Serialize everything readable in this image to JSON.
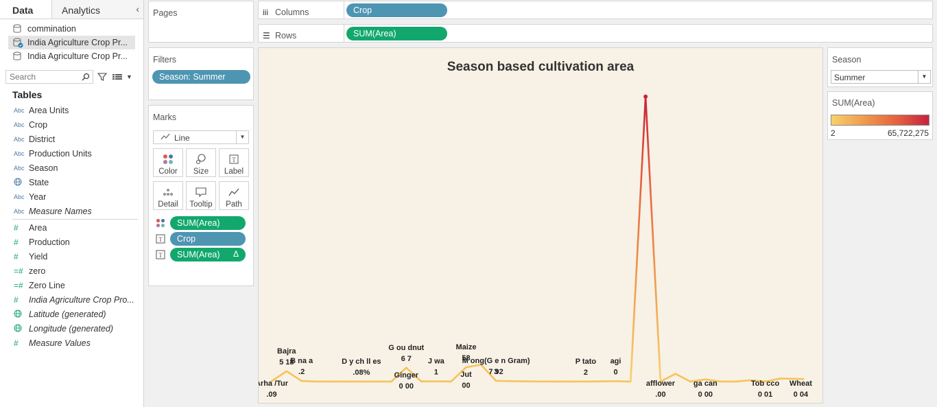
{
  "left_pane": {
    "tabs": [
      "Data",
      "Analytics"
    ],
    "collapse_icon": "chevron-left-icon",
    "data_sources": [
      {
        "label": "commination",
        "selected": false
      },
      {
        "label": "India Agriculture Crop Pr...",
        "selected": true
      },
      {
        "label": "India Agriculture Crop Pr...",
        "selected": false
      }
    ],
    "search_placeholder": "Search",
    "tables_heading": "Tables",
    "dimensions": [
      {
        "type": "Abc",
        "label": "Area Units",
        "italic": false
      },
      {
        "type": "Abc",
        "label": "Crop",
        "italic": false
      },
      {
        "type": "Abc",
        "label": "District",
        "italic": false
      },
      {
        "type": "Abc",
        "label": "Production Units",
        "italic": false
      },
      {
        "type": "Abc",
        "label": "Season",
        "italic": false
      },
      {
        "type": "geo",
        "label": "State",
        "italic": false
      },
      {
        "type": "Abc",
        "label": "Year",
        "italic": false
      },
      {
        "type": "Abc",
        "label": "Measure Names",
        "italic": true
      }
    ],
    "measures": [
      {
        "type": "#",
        "label": "Area",
        "italic": false
      },
      {
        "type": "#",
        "label": "Production",
        "italic": false
      },
      {
        "type": "#",
        "label": "Yield",
        "italic": false
      },
      {
        "type": "=#",
        "label": "zero",
        "italic": false
      },
      {
        "type": "=#",
        "label": "Zero Line",
        "italic": false
      },
      {
        "type": "#",
        "label": "India Agriculture Crop Pro...",
        "italic": true
      },
      {
        "type": "geo",
        "label": "Latitude (generated)",
        "italic": true
      },
      {
        "type": "geo",
        "label": "Longitude (generated)",
        "italic": true
      },
      {
        "type": "#",
        "label": "Measure Values",
        "italic": true
      }
    ]
  },
  "pages_panel": {
    "title": "Pages"
  },
  "filters_panel": {
    "title": "Filters",
    "pill": "Season: Summer"
  },
  "marks_panel": {
    "title": "Marks",
    "mark_type": "Line",
    "buttons": [
      "Color",
      "Size",
      "Label",
      "Detail",
      "Tooltip",
      "Path"
    ],
    "cards": [
      {
        "icon": "color-dots-icon",
        "label": "SUM(Area)",
        "color": "green",
        "delta": ""
      },
      {
        "icon": "text-label-icon",
        "label": "Crop",
        "color": "blue",
        "delta": ""
      },
      {
        "icon": "text-label-icon",
        "label": "SUM(Area)",
        "color": "green",
        "delta": "Δ"
      }
    ]
  },
  "columns_shelf": {
    "label": "Columns",
    "pill": "Crop"
  },
  "rows_shelf": {
    "label": "Rows",
    "pill": "SUM(Area)"
  },
  "season_filter": {
    "title": "Season",
    "value": "Summer"
  },
  "color_legend": {
    "title": "SUM(Area)",
    "min": "2",
    "max": "65,722,275",
    "colors": [
      "#f7d26a",
      "#f19a4e",
      "#e6623f",
      "#c8223e"
    ]
  },
  "chart_data": {
    "type": "line",
    "title": "Season based cultivation area",
    "ylim": [
      0,
      66000000
    ],
    "color_scale": [
      "#f7d26a",
      "#c8223e"
    ],
    "points": [
      {
        "x": 0,
        "y": 100000
      },
      {
        "x": 1,
        "y": 2400000
      },
      {
        "x": 2,
        "y": 150000
      },
      {
        "x": 3,
        "y": 20000
      },
      {
        "x": 4,
        "y": 10000
      },
      {
        "x": 5,
        "y": 5000
      },
      {
        "x": 6,
        "y": 5000
      },
      {
        "x": 7,
        "y": 5000
      },
      {
        "x": 8,
        "y": 10000
      },
      {
        "x": 9,
        "y": 3200000
      },
      {
        "x": 10,
        "y": 50000
      },
      {
        "x": 11,
        "y": 60000
      },
      {
        "x": 12,
        "y": 30000
      },
      {
        "x": 13,
        "y": 3300000
      },
      {
        "x": 14,
        "y": 3900000
      },
      {
        "x": 15,
        "y": 180000
      },
      {
        "x": 16,
        "y": 100000
      },
      {
        "x": 17,
        "y": 60000
      },
      {
        "x": 18,
        "y": 20000
      },
      {
        "x": 19,
        "y": 10000
      },
      {
        "x": 20,
        "y": 15000
      },
      {
        "x": 21,
        "y": 20000
      },
      {
        "x": 22,
        "y": 50000
      },
      {
        "x": 23,
        "y": 100000
      },
      {
        "x": 24,
        "y": 10000
      },
      {
        "x": 25,
        "y": 65722275
      },
      {
        "x": 26,
        "y": 10000
      },
      {
        "x": 27,
        "y": 1800000
      },
      {
        "x": 28,
        "y": 10000
      },
      {
        "x": 29,
        "y": 500000
      },
      {
        "x": 30,
        "y": 10000
      },
      {
        "x": 31,
        "y": 10000
      },
      {
        "x": 32,
        "y": 300000
      },
      {
        "x": 33,
        "y": 10000
      },
      {
        "x": 34,
        "y": 700000
      }
    ],
    "labels": [
      {
        "x": 0,
        "line1": "Arha /Tur",
        "line2": ".09",
        "pos": "below"
      },
      {
        "x": 1,
        "line1": "Bajra",
        "line2": "5 18",
        "pos": "above"
      },
      {
        "x": 2,
        "line1": "B  na  a",
        "line2": ".2",
        "pos": "above"
      },
      {
        "x": 6,
        "line1": "D  y ch ll es",
        "line2": ".08%",
        "pos": "above"
      },
      {
        "x": 9,
        "line1": "G  ou   dnut",
        "line2": "6   7",
        "pos": "above"
      },
      {
        "x": 9,
        "line1": "Ginger",
        "line2": "0 00",
        "pos": "below"
      },
      {
        "x": 11,
        "line1": "J   wa",
        "line2": "1",
        "pos": "above"
      },
      {
        "x": 13,
        "line1": "Maize",
        "line2": "58",
        "pos": "above"
      },
      {
        "x": 13,
        "line1": "Jut",
        "line2": "00",
        "pos": "below"
      },
      {
        "x": 15,
        "line1": "M   ong(G  e   n Gram)",
        "line2": "7 92",
        "pos": "above"
      },
      {
        "x": 15,
        "line1": "",
        "line2": "3",
        "pos": "above"
      },
      {
        "x": 21,
        "line1": "P   tato",
        "line2": "2",
        "pos": "above"
      },
      {
        "x": 23,
        "line1": "agi",
        "line2": "0",
        "pos": "above"
      },
      {
        "x": 26,
        "line1": "afflower",
        "line2": ".00",
        "pos": "below"
      },
      {
        "x": 29,
        "line1": "ga  can",
        "line2": "0 00",
        "pos": "below"
      },
      {
        "x": 33,
        "line1": "Tob   cco",
        "line2": "0 01",
        "pos": "below"
      },
      {
        "x": 36,
        "line1": "Wheat",
        "line2": "0 04",
        "pos": "below"
      }
    ]
  }
}
